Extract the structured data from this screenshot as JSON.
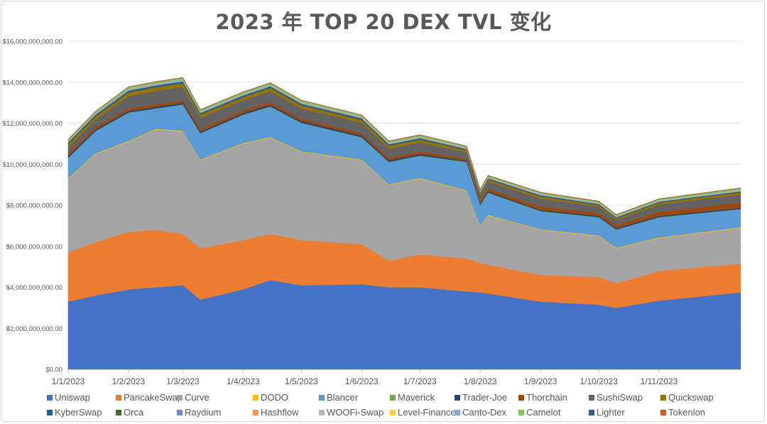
{
  "chart_data": {
    "type": "area",
    "stacked": true,
    "title": "2023 年 TOP 20 DEX TVL 变化",
    "xlabel": "",
    "ylabel": "",
    "ylim": [
      0,
      16000000000
    ],
    "yticks": [
      "$0.00",
      "$2,000,000,000.00",
      "$4,000,000,000.00",
      "$6,000,000,000.00",
      "$8,000,000,000.00",
      "$10,000,000,000.00",
      "$12,000,000,000.00",
      "$14,000,000,000.00",
      "$16,000,000,000.00"
    ],
    "xticks": [
      "1/1/2023",
      "1/2/2023",
      "1/3/2023",
      "1/4/2023",
      "1/5/2023",
      "1/6/2023",
      "1/7/2023",
      "1/8/2023",
      "1/9/2023",
      "1/10/2023",
      "1/11/2023"
    ],
    "xtick_dates": [
      "2023-01-01",
      "2023-02-01",
      "2023-03-01",
      "2023-04-01",
      "2023-05-01",
      "2023-06-01",
      "2023-07-01",
      "2023-08-01",
      "2023-09-01",
      "2023-10-01",
      "2023-11-01"
    ],
    "grid": true,
    "legend_position": "bottom",
    "unit": "USD billions",
    "x": [
      "2023-01-01",
      "2023-01-15",
      "2023-02-01",
      "2023-02-15",
      "2023-03-01",
      "2023-03-10",
      "2023-04-01",
      "2023-04-15",
      "2023-05-01",
      "2023-06-01",
      "2023-06-15",
      "2023-07-01",
      "2023-07-25",
      "2023-08-01",
      "2023-08-05",
      "2023-09-01",
      "2023-10-01",
      "2023-10-10",
      "2023-11-01",
      "2023-12-13"
    ],
    "series": [
      {
        "name": "Uniswap",
        "color": "#4472C4",
        "values": [
          3.3,
          3.6,
          3.9,
          4.0,
          4.1,
          3.4,
          3.9,
          4.35,
          4.1,
          4.15,
          4.0,
          4.0,
          3.8,
          3.75,
          3.7,
          3.3,
          3.15,
          3.0,
          3.35,
          3.75
        ]
      },
      {
        "name": "PancakeSwap",
        "color": "#ED7D31",
        "values": [
          2.4,
          2.6,
          2.8,
          2.8,
          2.5,
          2.5,
          2.4,
          2.25,
          2.2,
          1.95,
          1.3,
          1.6,
          1.6,
          1.45,
          1.4,
          1.3,
          1.35,
          1.2,
          1.45,
          1.4
        ]
      },
      {
        "name": "Curve",
        "color": "#A5A5A5",
        "values": [
          3.6,
          4.3,
          4.4,
          4.9,
          5.0,
          4.3,
          4.7,
          4.7,
          4.3,
          4.1,
          3.7,
          3.7,
          3.3,
          1.8,
          2.4,
          2.2,
          2.0,
          1.7,
          1.6,
          1.75
        ]
      },
      {
        "name": "DODO",
        "color": "#FFC000",
        "values": [
          0.03,
          0.03,
          0.03,
          0.03,
          0.03,
          0.03,
          0.03,
          0.03,
          0.03,
          0.03,
          0.03,
          0.03,
          0.03,
          0.03,
          0.03,
          0.03,
          0.03,
          0.03,
          0.03,
          0.03
        ]
      },
      {
        "name": "Blancer",
        "color": "#5B9BD5",
        "values": [
          0.97,
          1.07,
          1.37,
          0.97,
          1.27,
          1.27,
          1.37,
          1.47,
          1.37,
          1.07,
          1.07,
          1.07,
          1.37,
          0.97,
          1.07,
          0.87,
          0.87,
          0.87,
          0.97,
          0.87
        ]
      },
      {
        "name": "Maverick",
        "color": "#70AD47",
        "values": [
          0.02,
          0.02,
          0.02,
          0.02,
          0.02,
          0.02,
          0.02,
          0.02,
          0.02,
          0.02,
          0.02,
          0.02,
          0.02,
          0.02,
          0.02,
          0.02,
          0.02,
          0.02,
          0.02,
          0.02
        ]
      },
      {
        "name": "Trader-Joe",
        "color": "#264478",
        "values": [
          0.08,
          0.08,
          0.08,
          0.08,
          0.08,
          0.08,
          0.08,
          0.08,
          0.08,
          0.08,
          0.08,
          0.08,
          0.06,
          0.06,
          0.06,
          0.06,
          0.06,
          0.06,
          0.06,
          0.06
        ]
      },
      {
        "name": "Thorchain",
        "color": "#9E480E",
        "values": [
          0.12,
          0.12,
          0.12,
          0.12,
          0.12,
          0.12,
          0.12,
          0.12,
          0.12,
          0.12,
          0.12,
          0.12,
          0.1,
          0.1,
          0.12,
          0.15,
          0.15,
          0.15,
          0.2,
          0.25
        ]
      },
      {
        "name": "SushiSwap",
        "color": "#636363",
        "values": [
          0.3,
          0.35,
          0.6,
          0.65,
          0.65,
          0.55,
          0.5,
          0.55,
          0.5,
          0.5,
          0.45,
          0.45,
          0.3,
          0.3,
          0.35,
          0.4,
          0.3,
          0.25,
          0.35,
          0.4
        ]
      },
      {
        "name": "Quickswap",
        "color": "#997300",
        "values": [
          0.15,
          0.15,
          0.18,
          0.18,
          0.18,
          0.15,
          0.15,
          0.15,
          0.15,
          0.14,
          0.13,
          0.13,
          0.1,
          0.1,
          0.1,
          0.1,
          0.08,
          0.08,
          0.09,
          0.1
        ]
      },
      {
        "name": "KyberSwap",
        "color": "#255E91",
        "values": [
          0.08,
          0.08,
          0.08,
          0.08,
          0.08,
          0.07,
          0.07,
          0.07,
          0.07,
          0.07,
          0.06,
          0.06,
          0.05,
          0.05,
          0.05,
          0.05,
          0.04,
          0.04,
          0.04,
          0.04
        ]
      },
      {
        "name": "Orca",
        "color": "#43682B",
        "values": [
          0.01,
          0.01,
          0.01,
          0.01,
          0.01,
          0.01,
          0.01,
          0.01,
          0.01,
          0.01,
          0.01,
          0.01,
          0.01,
          0.01,
          0.01,
          0.01,
          0.01,
          0.01,
          0.01,
          0.01
        ]
      },
      {
        "name": "Raydium",
        "color": "#698ED0",
        "values": [
          0.02,
          0.02,
          0.02,
          0.02,
          0.02,
          0.02,
          0.02,
          0.02,
          0.02,
          0.02,
          0.02,
          0.02,
          0.02,
          0.02,
          0.02,
          0.02,
          0.02,
          0.02,
          0.02,
          0.02
        ]
      },
      {
        "name": "Hashflow",
        "color": "#F1975A",
        "values": [
          0.01,
          0.01,
          0.01,
          0.01,
          0.01,
          0.01,
          0.01,
          0.01,
          0.01,
          0.01,
          0.01,
          0.01,
          0.01,
          0.01,
          0.01,
          0.01,
          0.01,
          0.01,
          0.01,
          0.01
        ]
      },
      {
        "name": "WOOFi-Swap",
        "color": "#B7B7B7",
        "values": [
          0.01,
          0.01,
          0.01,
          0.01,
          0.01,
          0.01,
          0.01,
          0.01,
          0.01,
          0.01,
          0.01,
          0.01,
          0.01,
          0.01,
          0.01,
          0.01,
          0.01,
          0.01,
          0.01,
          0.01
        ]
      },
      {
        "name": "Level-Finance",
        "color": "#FFCD33",
        "values": [
          0.01,
          0.01,
          0.01,
          0.01,
          0.01,
          0.01,
          0.01,
          0.01,
          0.01,
          0.01,
          0.01,
          0.01,
          0.01,
          0.01,
          0.01,
          0.01,
          0.01,
          0.01,
          0.01,
          0.01
        ]
      },
      {
        "name": "Canto-Dex",
        "color": "#7CAFDD",
        "values": [
          0.03,
          0.03,
          0.04,
          0.04,
          0.04,
          0.03,
          0.03,
          0.03,
          0.03,
          0.03,
          0.03,
          0.03,
          0.02,
          0.02,
          0.02,
          0.02,
          0.02,
          0.02,
          0.02,
          0.02
        ]
      },
      {
        "name": "Camelot",
        "color": "#8CC168",
        "values": [
          0.06,
          0.07,
          0.08,
          0.08,
          0.08,
          0.07,
          0.08,
          0.08,
          0.08,
          0.07,
          0.07,
          0.07,
          0.06,
          0.06,
          0.06,
          0.06,
          0.05,
          0.05,
          0.06,
          0.08
        ]
      },
      {
        "name": "Lighter",
        "color": "#335AA1",
        "values": [
          0.01,
          0.01,
          0.01,
          0.01,
          0.01,
          0.01,
          0.01,
          0.01,
          0.01,
          0.01,
          0.01,
          0.01,
          0.01,
          0.01,
          0.01,
          0.01,
          0.01,
          0.01,
          0.01,
          0.01
        ]
      },
      {
        "name": "Tokenlon",
        "color": "#D26012",
        "values": [
          0.01,
          0.01,
          0.01,
          0.01,
          0.01,
          0.01,
          0.01,
          0.01,
          0.01,
          0.01,
          0.01,
          0.01,
          0.01,
          0.01,
          0.01,
          0.01,
          0.01,
          0.01,
          0.01,
          0.01
        ]
      }
    ]
  }
}
